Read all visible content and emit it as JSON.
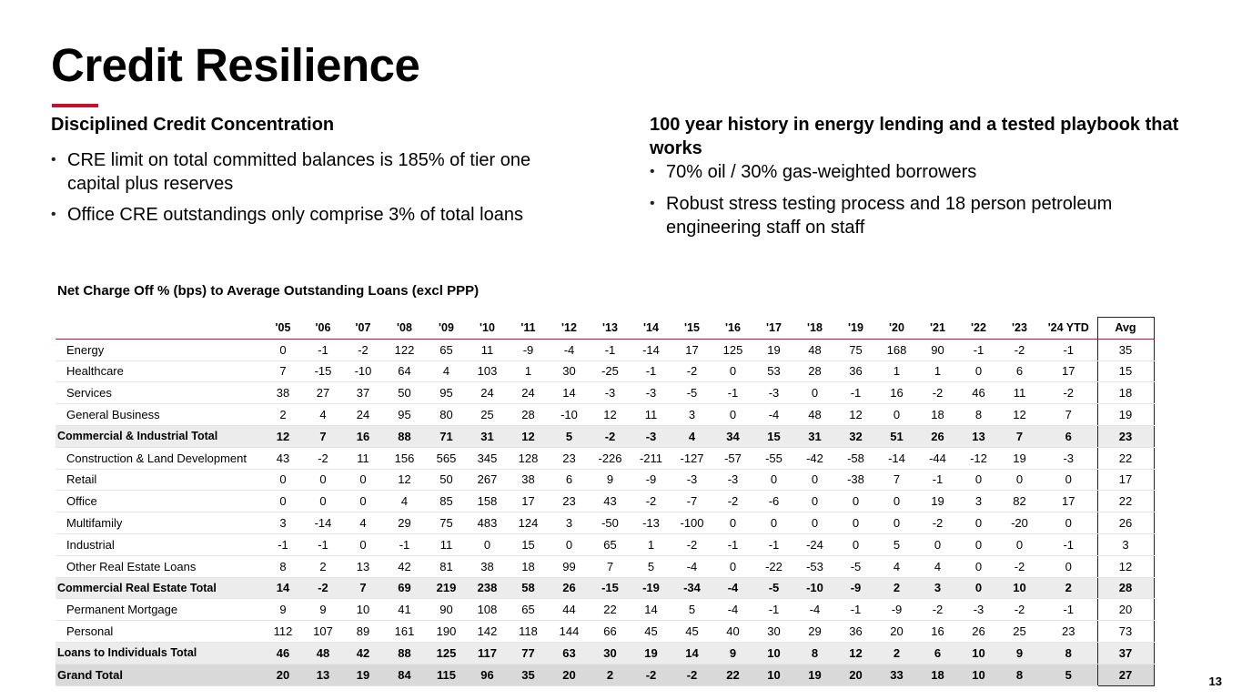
{
  "slide": {
    "title": "Credit Resilience",
    "page_number": "13",
    "accent_color": "#c8102e"
  },
  "left": {
    "heading": "Disciplined Credit Concentration",
    "bullets": [
      "CRE limit on total committed balances is 185% of tier one capital plus reserves",
      "Office CRE outstandings only comprise 3% of total loans"
    ]
  },
  "right": {
    "heading": "100 year history in energy lending and a tested playbook that works",
    "bullets": [
      "70% oil / 30% gas-weighted borrowers",
      "Robust stress testing process and 18 person petroleum engineering staff on staff"
    ]
  },
  "table": {
    "title": "Net Charge Off % (bps) to Average Outstanding Loans (excl PPP)",
    "columns": [
      "'05",
      "'06",
      "'07",
      "'08",
      "'09",
      "'10",
      "'11",
      "'12",
      "'13",
      "'14",
      "'15",
      "'16",
      "'17",
      "'18",
      "'19",
      "'20",
      "'21",
      "'22",
      "'23",
      "'24 YTD",
      "Avg"
    ],
    "rows": [
      {
        "label": "Energy",
        "type": "item",
        "values": [
          "0",
          "-1",
          "-2",
          "122",
          "65",
          "11",
          "-9",
          "-4",
          "-1",
          "-14",
          "17",
          "125",
          "19",
          "48",
          "75",
          "168",
          "90",
          "-1",
          "-2",
          "-1",
          "35"
        ]
      },
      {
        "label": "Healthcare",
        "type": "item",
        "values": [
          "7",
          "-15",
          "-10",
          "64",
          "4",
          "103",
          "1",
          "30",
          "-25",
          "-1",
          "-2",
          "0",
          "53",
          "28",
          "36",
          "1",
          "1",
          "0",
          "6",
          "17",
          "15"
        ]
      },
      {
        "label": "Services",
        "type": "item",
        "values": [
          "38",
          "27",
          "37",
          "50",
          "95",
          "24",
          "24",
          "14",
          "-3",
          "-3",
          "-5",
          "-1",
          "-3",
          "0",
          "-1",
          "16",
          "-2",
          "46",
          "11",
          "-2",
          "18"
        ]
      },
      {
        "label": "General Business",
        "type": "item",
        "values": [
          "2",
          "4",
          "24",
          "95",
          "80",
          "25",
          "28",
          "-10",
          "12",
          "11",
          "3",
          "0",
          "-4",
          "48",
          "12",
          "0",
          "18",
          "8",
          "12",
          "7",
          "19"
        ]
      },
      {
        "label": "Commercial & Industrial Total",
        "type": "subtotal",
        "values": [
          "12",
          "7",
          "16",
          "88",
          "71",
          "31",
          "12",
          "5",
          "-2",
          "-3",
          "4",
          "34",
          "15",
          "31",
          "32",
          "51",
          "26",
          "13",
          "7",
          "6",
          "23"
        ]
      },
      {
        "label": "Construction & Land Development",
        "type": "item",
        "values": [
          "43",
          "-2",
          "11",
          "156",
          "565",
          "345",
          "128",
          "23",
          "-226",
          "-211",
          "-127",
          "-57",
          "-55",
          "-42",
          "-58",
          "-14",
          "-44",
          "-12",
          "19",
          "-3",
          "22"
        ]
      },
      {
        "label": "Retail",
        "type": "item",
        "values": [
          "0",
          "0",
          "0",
          "12",
          "50",
          "267",
          "38",
          "6",
          "9",
          "-9",
          "-3",
          "-3",
          "0",
          "0",
          "-38",
          "7",
          "-1",
          "0",
          "0",
          "0",
          "17"
        ]
      },
      {
        "label": "Office",
        "type": "item",
        "values": [
          "0",
          "0",
          "0",
          "4",
          "85",
          "158",
          "17",
          "23",
          "43",
          "-2",
          "-7",
          "-2",
          "-6",
          "0",
          "0",
          "0",
          "19",
          "3",
          "82",
          "17",
          "22"
        ]
      },
      {
        "label": "Multifamily",
        "type": "item",
        "values": [
          "3",
          "-14",
          "4",
          "29",
          "75",
          "483",
          "124",
          "3",
          "-50",
          "-13",
          "-100",
          "0",
          "0",
          "0",
          "0",
          "0",
          "-2",
          "0",
          "-20",
          "0",
          "26"
        ]
      },
      {
        "label": "Industrial",
        "type": "item",
        "values": [
          "-1",
          "-1",
          "0",
          "-1",
          "11",
          "0",
          "15",
          "0",
          "65",
          "1",
          "-2",
          "-1",
          "-1",
          "-24",
          "0",
          "5",
          "0",
          "0",
          "0",
          "-1",
          "3"
        ]
      },
      {
        "label": "Other Real Estate Loans",
        "type": "item",
        "values": [
          "8",
          "2",
          "13",
          "42",
          "81",
          "38",
          "18",
          "99",
          "7",
          "5",
          "-4",
          "0",
          "-22",
          "-53",
          "-5",
          "4",
          "4",
          "0",
          "-2",
          "0",
          "12"
        ]
      },
      {
        "label": "Commercial Real Estate Total",
        "type": "subtotal",
        "values": [
          "14",
          "-2",
          "7",
          "69",
          "219",
          "238",
          "58",
          "26",
          "-15",
          "-19",
          "-34",
          "-4",
          "-5",
          "-10",
          "-9",
          "2",
          "3",
          "0",
          "10",
          "2",
          "28"
        ]
      },
      {
        "label": "Permanent Mortgage",
        "type": "item",
        "values": [
          "9",
          "9",
          "10",
          "41",
          "90",
          "108",
          "65",
          "44",
          "22",
          "14",
          "5",
          "-4",
          "-1",
          "-4",
          "-1",
          "-9",
          "-2",
          "-3",
          "-2",
          "-1",
          "20"
        ]
      },
      {
        "label": "Personal",
        "type": "item",
        "values": [
          "112",
          "107",
          "89",
          "161",
          "190",
          "142",
          "118",
          "144",
          "66",
          "45",
          "45",
          "40",
          "30",
          "29",
          "36",
          "20",
          "16",
          "26",
          "25",
          "23",
          "73"
        ]
      },
      {
        "label": "Loans to Individuals Total",
        "type": "subtotal",
        "values": [
          "46",
          "48",
          "42",
          "88",
          "125",
          "117",
          "77",
          "63",
          "30",
          "19",
          "14",
          "9",
          "10",
          "8",
          "12",
          "2",
          "6",
          "10",
          "9",
          "8",
          "37"
        ]
      },
      {
        "label": "Grand Total",
        "type": "grand",
        "values": [
          "20",
          "13",
          "19",
          "84",
          "115",
          "96",
          "35",
          "20",
          "2",
          "-2",
          "-2",
          "22",
          "10",
          "19",
          "20",
          "33",
          "18",
          "10",
          "8",
          "5",
          "27"
        ]
      }
    ]
  }
}
